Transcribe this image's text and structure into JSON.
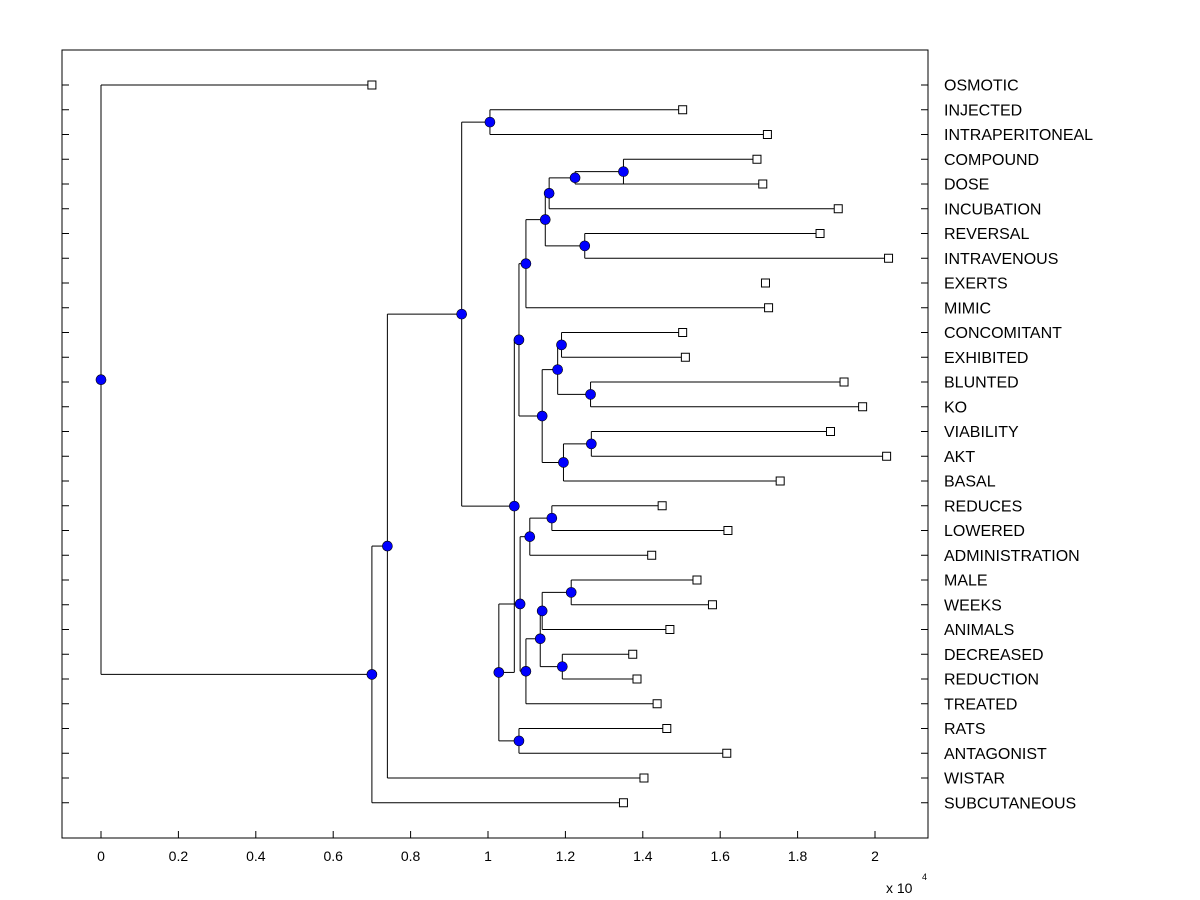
{
  "chart_data": {
    "type": "dendrogram",
    "title": "",
    "xlabel": "",
    "ylabel": "",
    "x_scale_label": "x 10",
    "x_scale_exponent": "4",
    "xlim": [
      -0.1,
      2.14
    ],
    "x_ticks": [
      0,
      0.2,
      0.4,
      0.6,
      0.8,
      1,
      1.2,
      1.4,
      1.6,
      1.8,
      2
    ],
    "x_tick_labels": [
      "0",
      "0.2",
      "0.4",
      "0.6",
      "0.8",
      "1",
      "1.2",
      "1.4",
      "1.6",
      "1.8",
      "2"
    ],
    "leaves": [
      {
        "label": "OSMOTIC",
        "value": 0.7
      },
      {
        "label": "INJECTED",
        "value": 1.503
      },
      {
        "label": "INTRAPERITONEAL",
        "value": 1.722
      },
      {
        "label": "COMPOUND",
        "value": 1.695
      },
      {
        "label": "DOSE",
        "value": 1.71
      },
      {
        "label": "INCUBATION",
        "value": 1.905
      },
      {
        "label": "REVERSAL",
        "value": 1.858
      },
      {
        "label": "INTRAVENOUS",
        "value": 2.035
      },
      {
        "label": "EXERTS",
        "value": 1.717
      },
      {
        "label": "MIMIC",
        "value": 1.725
      },
      {
        "label": "CONCOMITANT",
        "value": 1.503
      },
      {
        "label": "EXHIBITED",
        "value": 1.51
      },
      {
        "label": "BLUNTED",
        "value": 1.92
      },
      {
        "label": "KO",
        "value": 1.968
      },
      {
        "label": "VIABILITY",
        "value": 1.885
      },
      {
        "label": "AKT",
        "value": 2.03
      },
      {
        "label": "BASAL",
        "value": 1.755
      },
      {
        "label": "REDUCES",
        "value": 1.45
      },
      {
        "label": "LOWERED",
        "value": 1.62
      },
      {
        "label": "ADMINISTRATION",
        "value": 1.423
      },
      {
        "label": "MALE",
        "value": 1.54
      },
      {
        "label": "WEEKS",
        "value": 1.58
      },
      {
        "label": "ANIMALS",
        "value": 1.47
      },
      {
        "label": "DECREASED",
        "value": 1.374
      },
      {
        "label": "REDUCTION",
        "value": 1.385
      },
      {
        "label": "TREATED",
        "value": 1.437
      },
      {
        "label": "RATS",
        "value": 1.462
      },
      {
        "label": "ANTAGONIST",
        "value": 1.617
      },
      {
        "label": "WISTAR",
        "value": 1.403
      },
      {
        "label": "SUBCUTANEOUS",
        "value": 1.35
      }
    ],
    "nodes": [
      {
        "id": "n0",
        "value": 0.0,
        "children": [
          "L0",
          "n1"
        ]
      },
      {
        "id": "n1",
        "value": 0.7,
        "children": [
          "n2",
          "L29"
        ]
      },
      {
        "id": "n2",
        "value": 0.74,
        "children": [
          "n3",
          "L28"
        ]
      },
      {
        "id": "n3",
        "value": 0.932,
        "children": [
          "n4",
          "n5"
        ]
      },
      {
        "id": "n4",
        "value": 1.005,
        "children": [
          "L1",
          "L2"
        ]
      },
      {
        "id": "n5",
        "value": 1.068,
        "children": [
          "n6",
          "n7"
        ]
      },
      {
        "id": "n6",
        "value": 1.08,
        "children": [
          "n8",
          "n9"
        ]
      },
      {
        "id": "n8",
        "value": 1.098,
        "children": [
          "n10",
          "L9"
        ]
      },
      {
        "id": "n10",
        "value": 1.148,
        "children": [
          "n11",
          "n12"
        ]
      },
      {
        "id": "n11",
        "value": 1.158,
        "children": [
          "n13",
          "L5"
        ]
      },
      {
        "id": "n13",
        "value": 1.225,
        "children": [
          "n14",
          "L4"
        ]
      },
      {
        "id": "n14",
        "value": 1.35,
        "children": [
          "L3",
          "L4"
        ]
      },
      {
        "id": "n12",
        "value": 1.25,
        "children": [
          "L6",
          "L7"
        ]
      },
      {
        "id": "n9",
        "value": 1.14,
        "children": [
          "n15",
          "n16"
        ]
      },
      {
        "id": "n15",
        "value": 1.18,
        "children": [
          "n17",
          "n18"
        ]
      },
      {
        "id": "n17",
        "value": 1.19,
        "children": [
          "L10",
          "L11"
        ]
      },
      {
        "id": "n18",
        "value": 1.265,
        "children": [
          "L12",
          "L13"
        ]
      },
      {
        "id": "n16",
        "value": 1.195,
        "children": [
          "n19",
          "L16"
        ]
      },
      {
        "id": "n19",
        "value": 1.267,
        "children": [
          "L14",
          "L15"
        ]
      },
      {
        "id": "n7",
        "value": 1.028,
        "children": [
          "n20",
          "n21"
        ]
      },
      {
        "id": "n20",
        "value": 1.083,
        "children": [
          "n22",
          "n23"
        ]
      },
      {
        "id": "n22",
        "value": 1.108,
        "children": [
          "n24",
          "L19"
        ]
      },
      {
        "id": "n24",
        "value": 1.165,
        "children": [
          "L17",
          "L18"
        ]
      },
      {
        "id": "n23",
        "value": 1.098,
        "children": [
          "n25",
          "L25"
        ]
      },
      {
        "id": "n25",
        "value": 1.135,
        "children": [
          "n26",
          "n27"
        ]
      },
      {
        "id": "n26",
        "value": 1.14,
        "children": [
          "n28",
          "L22"
        ]
      },
      {
        "id": "n28",
        "value": 1.215,
        "children": [
          "L20",
          "L21"
        ]
      },
      {
        "id": "n27",
        "value": 1.192,
        "children": [
          "L23",
          "L24"
        ]
      },
      {
        "id": "n21",
        "value": 1.08,
        "children": [
          "L26",
          "L27"
        ]
      }
    ]
  }
}
